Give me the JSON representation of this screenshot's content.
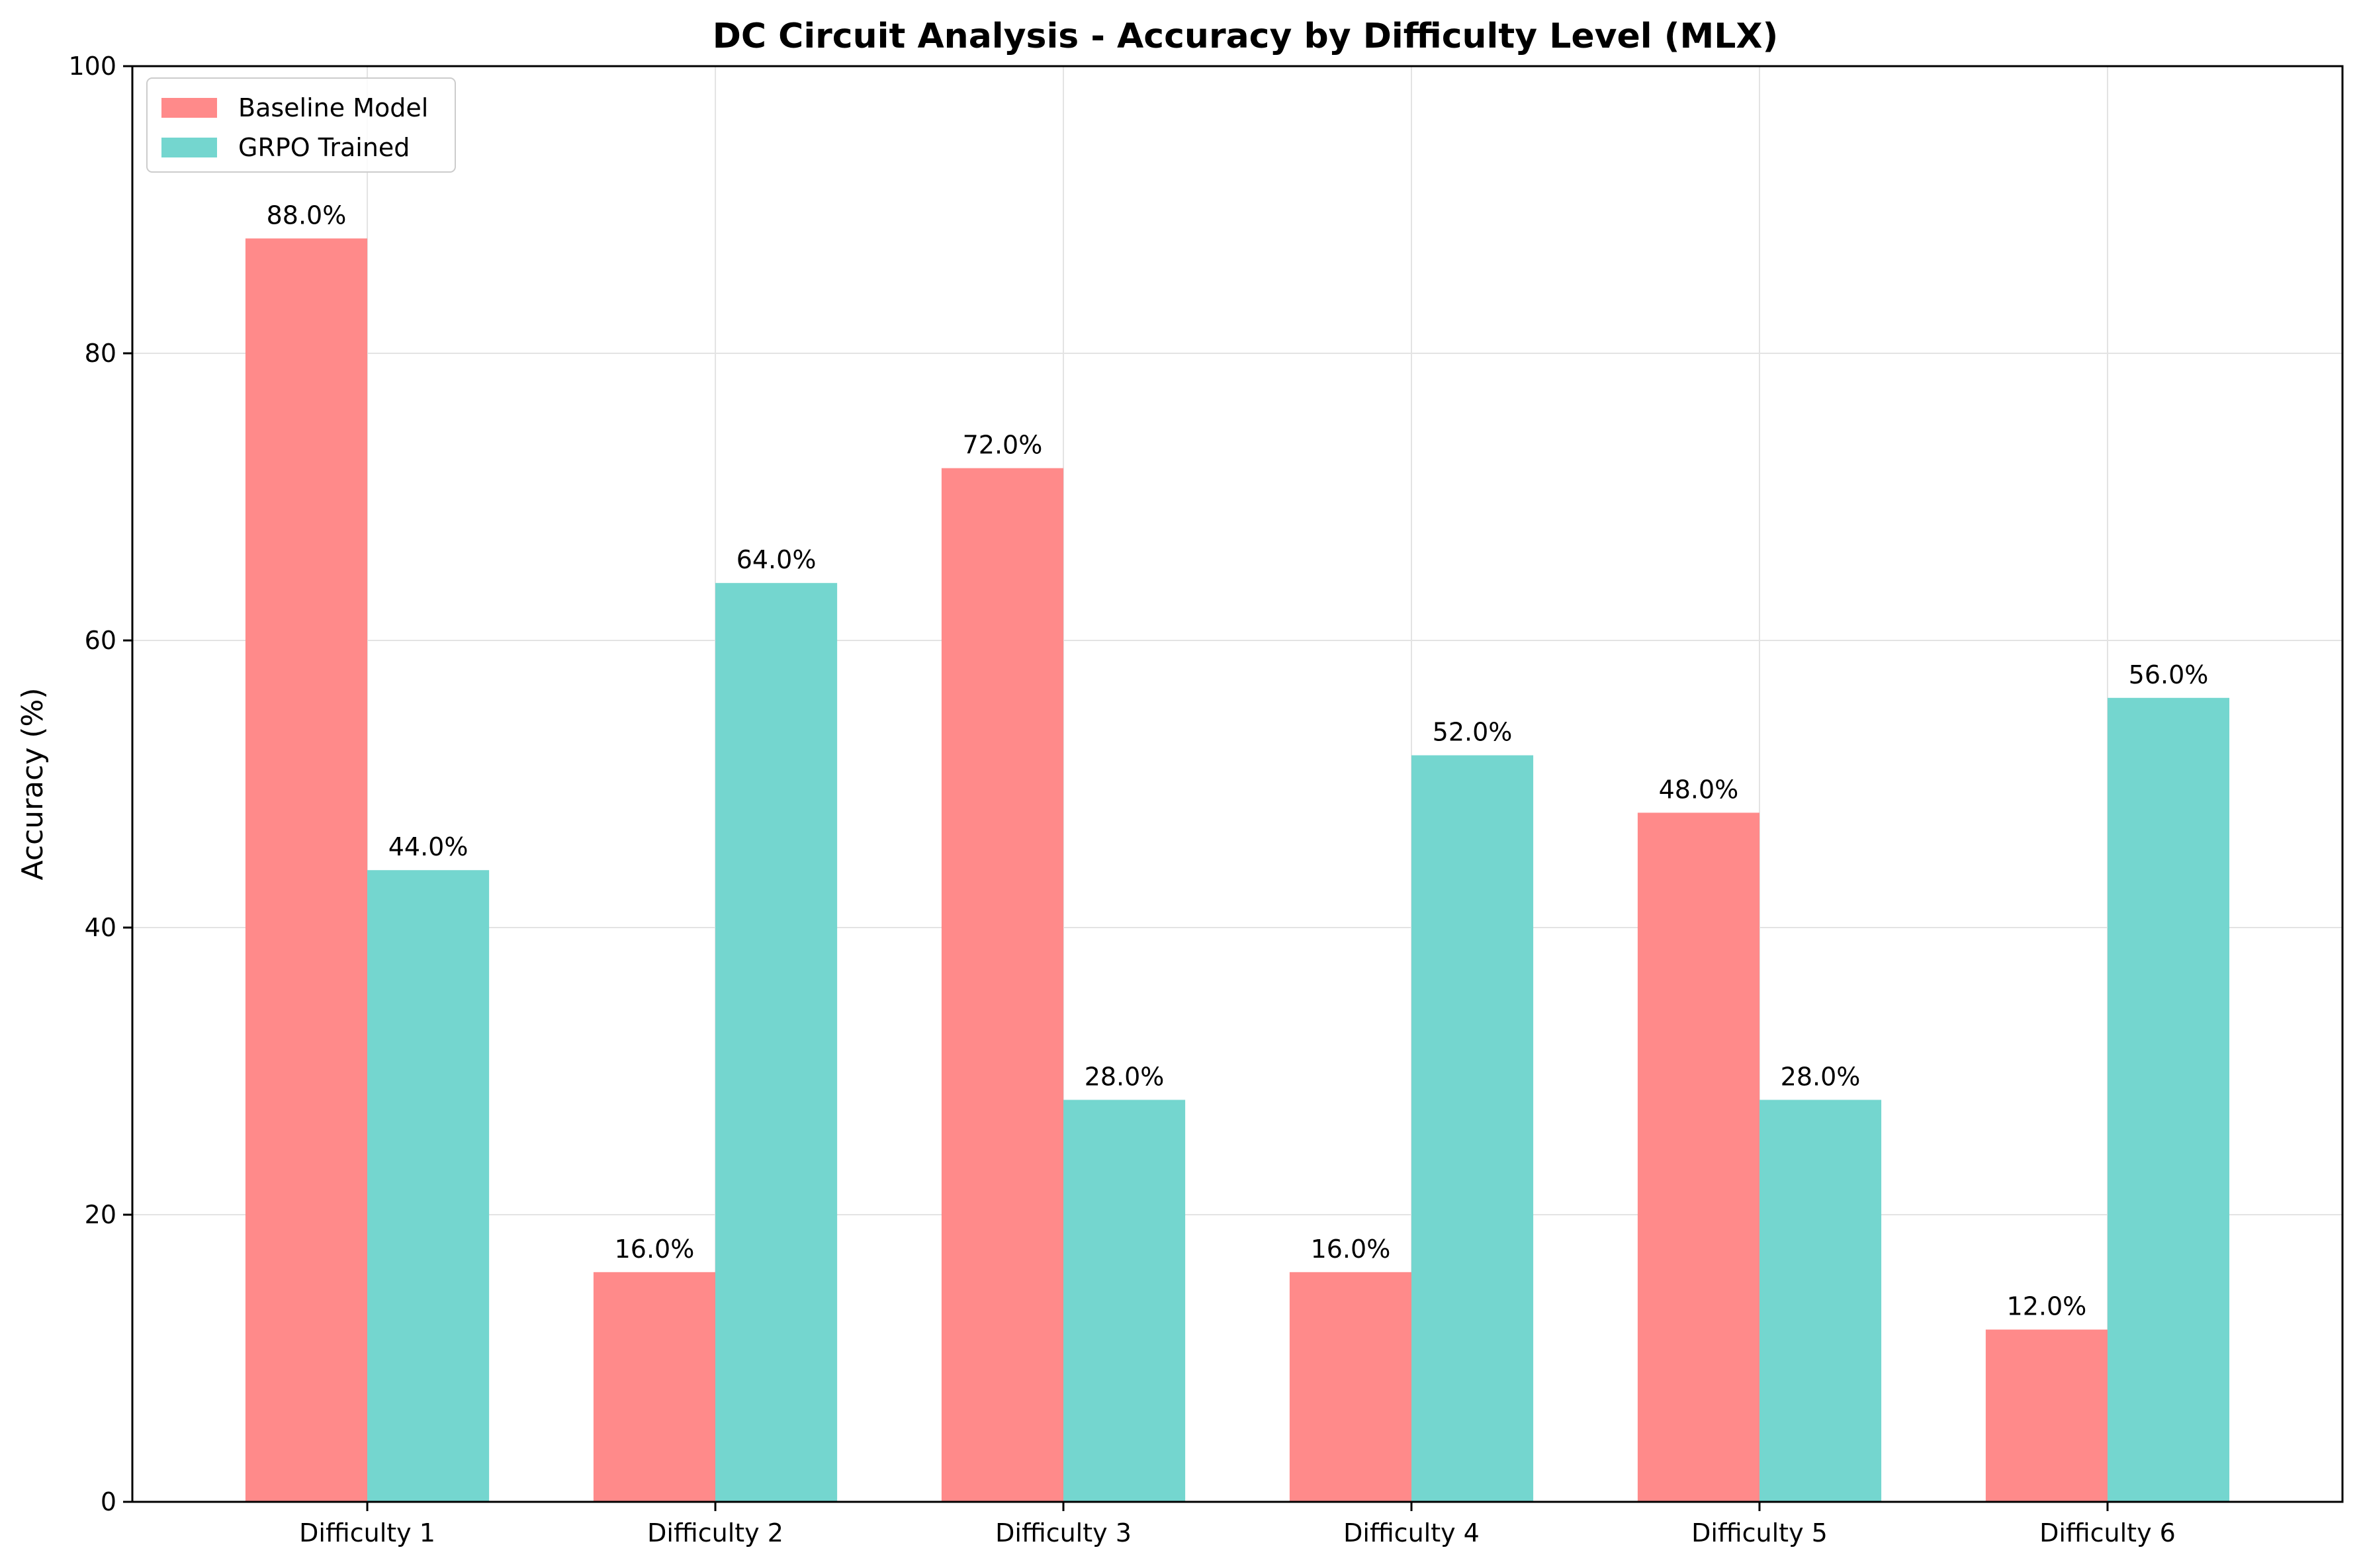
{
  "chart_data": {
    "type": "bar",
    "title": "DC Circuit Analysis - Accuracy by Difficulty Level (MLX)",
    "xlabel": "",
    "ylabel": "Accuracy (%)",
    "ylim": [
      0,
      100
    ],
    "yticks": [
      0,
      20,
      40,
      60,
      80,
      100
    ],
    "grid": true,
    "legend_position": "top-left",
    "categories": [
      "Difficulty 1",
      "Difficulty 2",
      "Difficulty 3",
      "Difficulty 4",
      "Difficulty 5",
      "Difficulty 6"
    ],
    "series": [
      {
        "name": "Baseline Model",
        "color": "#ff8a8a",
        "values": [
          88.0,
          16.0,
          72.0,
          16.0,
          48.0,
          12.0
        ]
      },
      {
        "name": "GRPO Trained",
        "color": "#74d6cf",
        "values": [
          44.0,
          64.0,
          28.0,
          52.0,
          28.0,
          56.0
        ]
      }
    ]
  }
}
